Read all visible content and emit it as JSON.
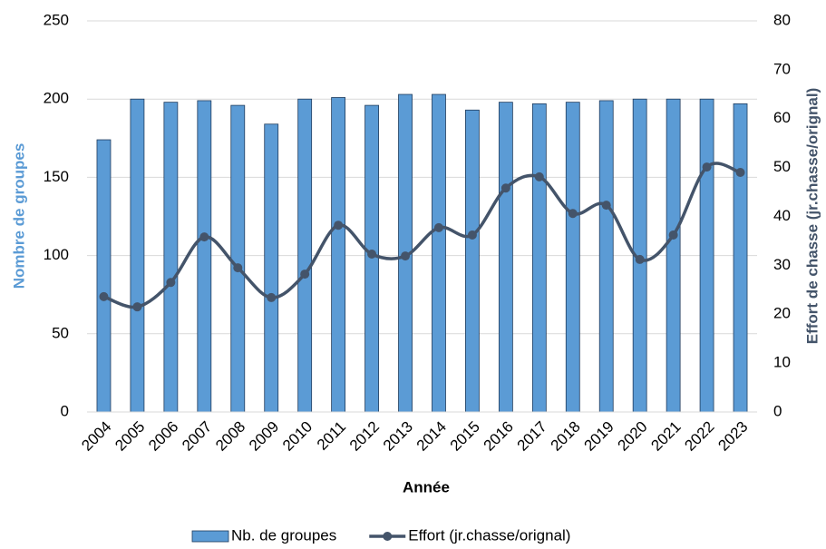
{
  "chart_data": {
    "type": "bar_line",
    "x_label": "Année",
    "y_label": "Nombre de groupes",
    "y2_label": "Effort de chasse (jr.chasse/orignal)",
    "categories": [
      "2004",
      "2005",
      "2006",
      "2007",
      "2008",
      "2009",
      "2010",
      "2011",
      "2012",
      "2013",
      "2014",
      "2015",
      "2016",
      "2017",
      "2018",
      "2019",
      "2020",
      "2021",
      "2022",
      "2023"
    ],
    "series": [
      {
        "name": "Nb. de groupes",
        "type": "bar",
        "color": "#5b9bd5",
        "values": [
          174,
          200,
          198,
          199,
          196,
          184,
          200,
          201,
          196,
          203,
          203,
          193,
          198,
          197,
          198,
          199,
          200,
          200,
          200,
          197
        ]
      },
      {
        "name": "Effort (jr.chasse/orignal)",
        "type": "line",
        "axis": "y2",
        "color": "#44546a",
        "smooth": true,
        "values": [
          23.6,
          21.5,
          26.5,
          35.8,
          29.5,
          23.4,
          28.2,
          38.2,
          32.3,
          31.9,
          37.7,
          36.2,
          45.8,
          48.1,
          40.6,
          42.3,
          31.2,
          36.2,
          50.1,
          49.0
        ]
      }
    ],
    "ylim": [
      0,
      250
    ],
    "yticks": [
      0,
      50,
      100,
      150,
      200,
      250
    ],
    "y2lim": [
      0,
      80
    ],
    "y2ticks": [
      0,
      10,
      20,
      30,
      40,
      50,
      60,
      70,
      80
    ],
    "grid": true,
    "legend": "bottom"
  }
}
